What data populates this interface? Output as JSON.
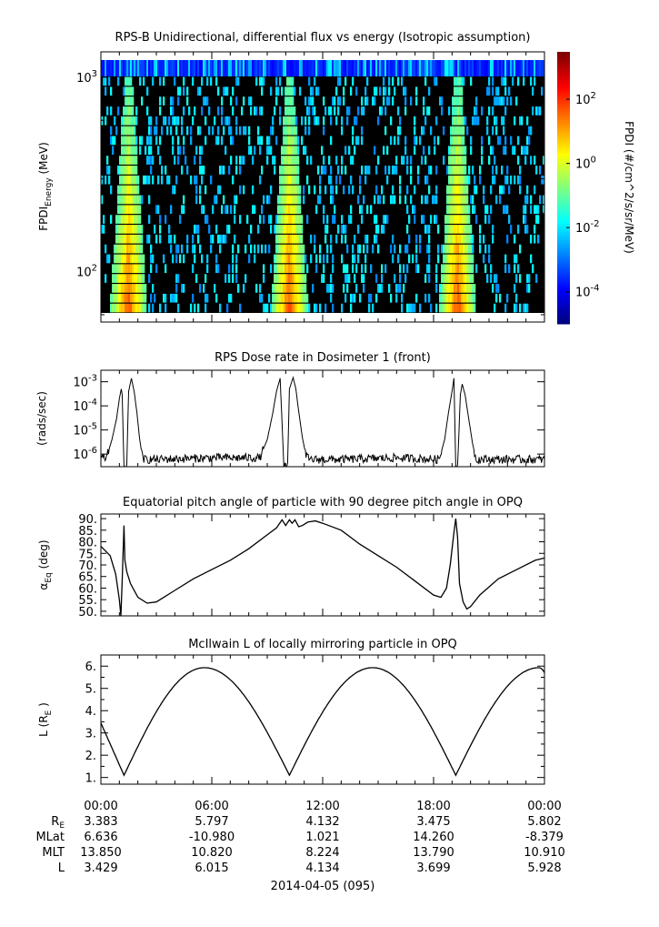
{
  "chart_data": [
    {
      "type": "heatmap",
      "title": "RPS-B  Unidirectional, differential flux vs energy (Isotropic assumption)",
      "ylabel": "FPDI_Energy (MeV)",
      "ylabel_main": "FPDI",
      "ylabel_sub": "Energy",
      "ylabel_unit": "(MeV)",
      "yscale": "log",
      "ylim": [
        55,
        1350
      ],
      "yticks": [
        {
          "v": 100,
          "m": "10",
          "e": "2"
        },
        {
          "v": 1000,
          "m": "10",
          "e": "3"
        }
      ],
      "colorbar_label": "FPDI (#/cm^2/s/sr/MeV)",
      "colorbar_scale": "log",
      "colorbar_range": [
        1e-05,
        3000
      ],
      "colorbar_ticks": [
        {
          "v": 0.0001,
          "m": "10",
          "e": "-4"
        },
        {
          "v": 0.01,
          "m": "10",
          "e": "-2"
        },
        {
          "v": 1,
          "m": "10",
          "e": "0"
        },
        {
          "v": 100,
          "m": "10",
          "e": "2"
        }
      ],
      "belt_passes_hours": [
        1.5,
        10.2,
        19.3
      ],
      "colors": {
        "low": "#00008b",
        "high": "#ff0000",
        "fill": "#000000"
      }
    },
    {
      "type": "line",
      "title": "RPS  Dose rate in Dosimeter 1 (front)",
      "ylabel": "(rads/sec)",
      "yscale": "log",
      "ylim": [
        3e-07,
        0.003
      ],
      "yticks": [
        {
          "v": 1e-06,
          "m": "10",
          "e": "-6"
        },
        {
          "v": 1e-05,
          "m": "10",
          "e": "-5"
        },
        {
          "v": 0.0001,
          "m": "10",
          "e": "-4"
        },
        {
          "v": 0.001,
          "m": "10",
          "e": "-3"
        }
      ],
      "series": [
        {
          "x": [
            0,
            0.3,
            0.6,
            0.85,
            1.0,
            1.1,
            1.15,
            1.25,
            1.4,
            1.5,
            1.65,
            1.8,
            1.95,
            2.1,
            2.25,
            2.4,
            3.0,
            6.0,
            8.6,
            9.0,
            9.3,
            9.5,
            9.7,
            9.9,
            10.0,
            10.1,
            10.2,
            10.4,
            10.55,
            10.7,
            10.9,
            11.1,
            11.3,
            11.6,
            13.0,
            16.0,
            18.3,
            18.6,
            18.8,
            19.0,
            19.1,
            19.2,
            19.3,
            19.45,
            19.55,
            19.7,
            19.9,
            20.1,
            20.3,
            21.0,
            24.0
          ],
          "y": [
            7e-07,
            7e-07,
            4e-06,
            3e-05,
            0.0002,
            0.0005,
            0.0003,
            3e-07,
            3e-07,
            0.0004,
            0.0014,
            0.0004,
            5e-05,
            4e-06,
            7e-07,
            6e-07,
            6e-07,
            7e-07,
            7e-07,
            4e-06,
            5e-05,
            0.0004,
            0.0014,
            3e-07,
            3e-07,
            3e-07,
            0.0005,
            0.0015,
            0.0005,
            6e-05,
            5e-06,
            8e-07,
            6e-07,
            6e-07,
            6e-07,
            7e-07,
            6e-07,
            4e-06,
            5e-05,
            0.0004,
            0.0014,
            3e-07,
            3e-07,
            0.0003,
            0.0008,
            0.0003,
            3e-05,
            3e-06,
            6e-07,
            6e-07,
            6e-07
          ]
        }
      ]
    },
    {
      "type": "line",
      "title": "Equatorial pitch angle of particle with 90 degree pitch angle in OPQ",
      "ylabel": "α_Eq (deg)",
      "ylabel_main": "α",
      "ylabel_sub": "Eq",
      "ylabel_unit": "(deg)",
      "ylim": [
        48,
        92
      ],
      "yticks": [
        50,
        55,
        60,
        65,
        70,
        75,
        80,
        85,
        90
      ],
      "series": [
        {
          "x": [
            0,
            0.5,
            0.8,
            1.0,
            1.08,
            1.15,
            1.25,
            1.3,
            1.4,
            1.6,
            2.0,
            2.5,
            3.0,
            4.0,
            5.0,
            6.0,
            7.0,
            8.0,
            9.0,
            9.5,
            9.8,
            10.0,
            10.2,
            10.35,
            10.5,
            10.7,
            10.9,
            11.2,
            11.6,
            12.0,
            13.0,
            14.0,
            15.0,
            16.0,
            17.0,
            18.0,
            18.4,
            18.7,
            18.9,
            19.1,
            19.2,
            19.3,
            19.4,
            19.6,
            19.8,
            20.0,
            20.5,
            21.5,
            22.5,
            23.5,
            24.0
          ],
          "y": [
            78,
            74,
            66,
            55,
            48,
            63,
            87,
            72,
            67,
            62,
            56,
            53.5,
            54,
            59,
            64,
            68,
            72,
            77,
            83,
            86,
            89.5,
            87,
            89.5,
            88,
            89.5,
            86.5,
            87,
            88.5,
            89,
            88,
            85,
            79,
            74,
            69,
            63,
            57,
            56,
            60,
            70,
            84,
            90,
            82,
            62,
            54,
            51,
            52,
            57,
            64,
            68,
            72,
            73
          ]
        }
      ]
    },
    {
      "type": "line",
      "title": "McIlwain L of locally mirroring particle in OPQ",
      "ylabel": "L (R_E)",
      "ylabel_main": "L (R",
      "ylabel_sub": "E",
      "ylabel_unit": ")",
      "ylim": [
        0.7,
        6.5
      ],
      "yticks": [
        1,
        1.5,
        2,
        2.5,
        3,
        3.5,
        4,
        4.5,
        5,
        5.5,
        6
      ],
      "yticks_labeled": [
        1,
        2,
        3,
        4,
        5,
        6
      ],
      "orbit": {
        "start_L": 3.45,
        "min_L": 1.1,
        "max_L": 5.93,
        "perigees_hours": [
          1.25,
          10.2,
          19.2
        ],
        "apogees_hours": [
          5.6,
          14.7,
          23.7
        ]
      }
    }
  ],
  "xaxis": {
    "range_hours": [
      0,
      24
    ],
    "date_label": "2014-04-05 (095)",
    "tick_hours": [
      0,
      6,
      12,
      18,
      24
    ],
    "minor_step_hours": 1,
    "times": [
      "00:00",
      "06:00",
      "12:00",
      "18:00",
      "00:00"
    ]
  },
  "ephemeris": [
    {
      "label": "R",
      "label_sub": "E",
      "values": [
        "3.383",
        "5.797",
        "4.132",
        "3.475",
        "5.802"
      ]
    },
    {
      "label": "MLat",
      "label_sub": "",
      "values": [
        "6.636",
        "-10.980",
        "1.021",
        "14.260",
        "-8.379"
      ]
    },
    {
      "label": "MLT",
      "label_sub": "",
      "values": [
        "13.850",
        "10.820",
        "8.224",
        "13.790",
        "10.910"
      ]
    },
    {
      "label": "L",
      "label_sub": "",
      "values": [
        "3.429",
        "6.015",
        "4.134",
        "3.699",
        "5.928"
      ]
    }
  ]
}
